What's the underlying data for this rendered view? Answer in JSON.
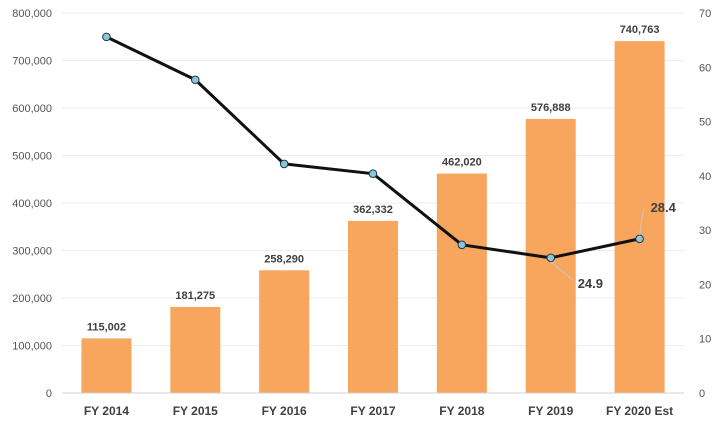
{
  "chart_data": {
    "type": "bar",
    "categories": [
      "FY 2014",
      "FY 2015",
      "FY 2016",
      "FY 2017",
      "FY 2018",
      "FY 2019",
      "FY 2020 Est"
    ],
    "series": [
      {
        "type": "bar",
        "axis": "left",
        "values": [
          115002,
          181275,
          258290,
          362332,
          462020,
          576888,
          740763
        ],
        "labels": [
          "115,002",
          "181,275",
          "258,290",
          "362,332",
          "462,020",
          "576,888",
          "740,763"
        ],
        "color": "#F8A55E"
      },
      {
        "type": "line",
        "axis": "right",
        "values": [
          65.6,
          57.7,
          42.2,
          40.4,
          27.3,
          24.9,
          28.4
        ],
        "labels": [
          "",
          "",
          "",
          "",
          "",
          "24.9",
          "28.4"
        ],
        "color": "#111111",
        "marker_color": "#8EC3D8"
      }
    ],
    "y_left": {
      "ylim": [
        0,
        800000
      ],
      "ticks": [
        0,
        100000,
        200000,
        300000,
        400000,
        500000,
        600000,
        700000,
        800000
      ],
      "tick_labels": [
        "0",
        "100,000",
        "200,000",
        "300,000",
        "400,000",
        "500,000",
        "600,000",
        "700,000",
        "800,000"
      ]
    },
    "y_right": {
      "ylim": [
        0,
        70
      ],
      "ticks": [
        0,
        10,
        20,
        30,
        40,
        50,
        60,
        70
      ],
      "tick_labels": [
        "0",
        "10",
        "20",
        "30",
        "40",
        "50",
        "60",
        "70"
      ]
    },
    "grid": true,
    "title": "",
    "xlabel": "",
    "ylabel": ""
  }
}
